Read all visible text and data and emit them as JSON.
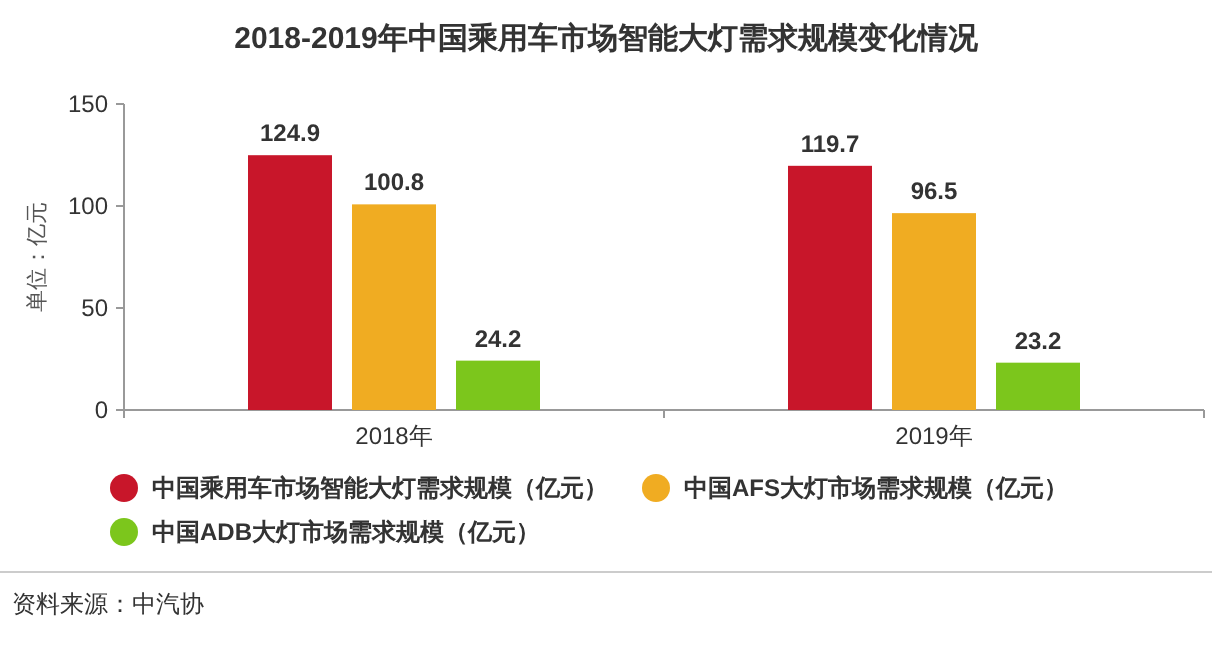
{
  "chart_data": {
    "type": "bar",
    "title": "2018-2019年中国乘用车市场智能大灯需求规模变化情况",
    "ylabel": "单位：亿元",
    "categories": [
      "2018年",
      "2019年"
    ],
    "series": [
      {
        "name": "中国乘用车市场智能大灯需求规模（亿元）",
        "color": "#c8162a",
        "values": [
          124.9,
          119.7
        ]
      },
      {
        "name": "中国AFS大灯市场需求规模（亿元）",
        "color": "#f0ac22",
        "values": [
          100.8,
          96.5
        ]
      },
      {
        "name": "中国ADB大灯市场需求规模（亿元）",
        "color": "#7cc61c",
        "values": [
          24.2,
          23.2
        ]
      }
    ],
    "ylim": [
      0,
      150
    ],
    "yticks": [
      0,
      50,
      100,
      150
    ],
    "grid": false,
    "legend": "bottom",
    "data_labels": true,
    "annotations": [
      "资料来源：中汽协"
    ]
  }
}
